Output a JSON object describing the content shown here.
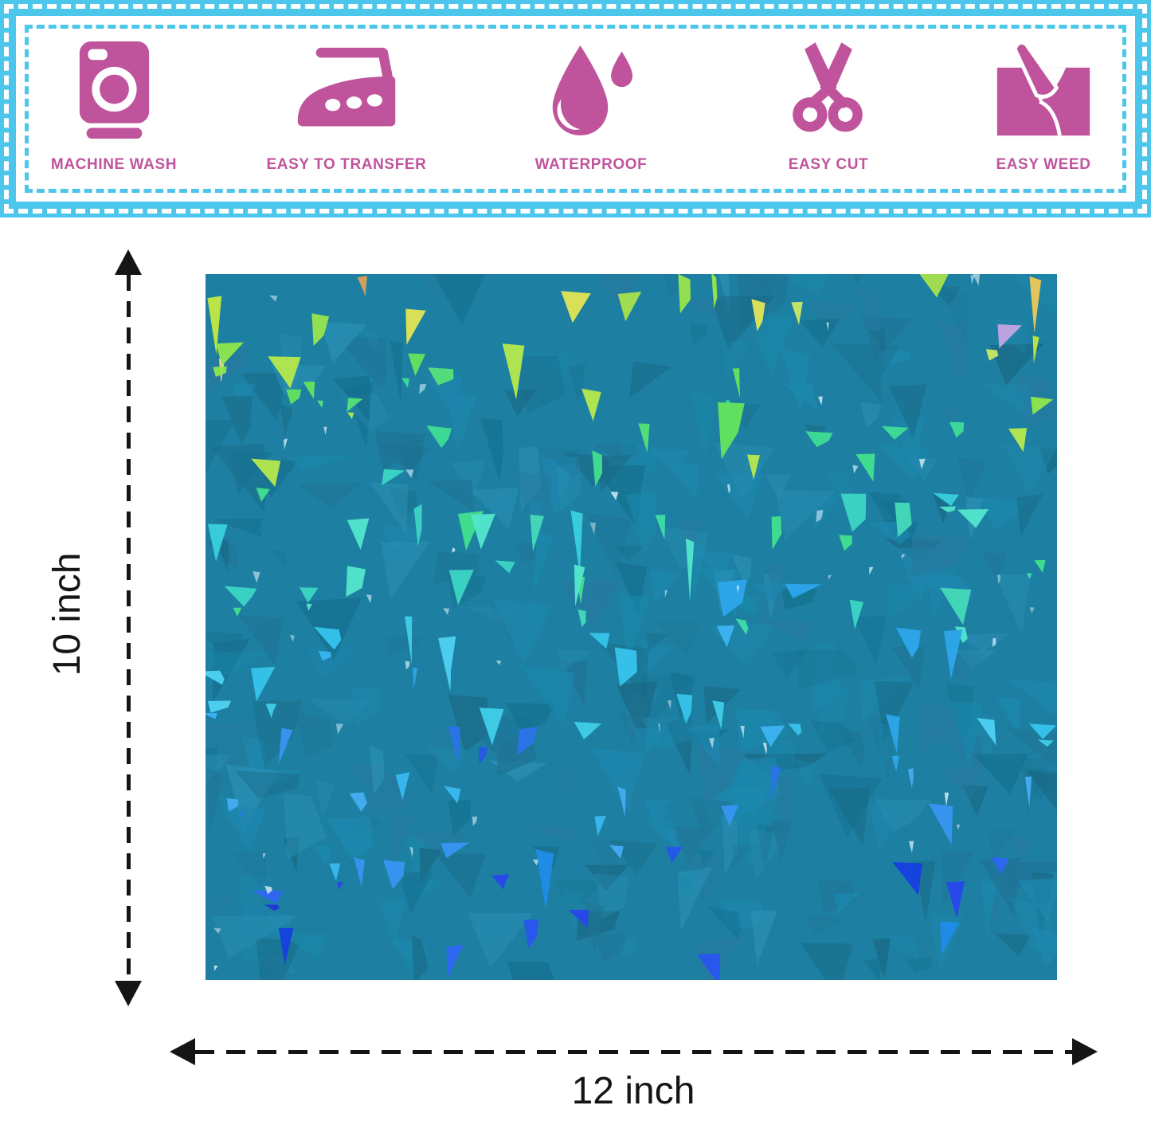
{
  "banner": {
    "border_color": "#4cc6eb",
    "accent_color": "#bf549d",
    "items": [
      {
        "icon": "washing-machine-icon",
        "label": "MACHINE WASH"
      },
      {
        "icon": "iron-icon",
        "label": "EASY TO TRANSFER"
      },
      {
        "icon": "water-drop-icon",
        "label": "WATERPROOF"
      },
      {
        "icon": "scissors-icon",
        "label": "EASY CUT"
      },
      {
        "icon": "peel-vinyl-icon",
        "label": "EASY WEED"
      }
    ]
  },
  "sheet": {
    "name": "blue holographic glitter vinyl sheet",
    "base_color": "#1d80a2",
    "tonal_palette": [
      "#15708f",
      "#1a89ad",
      "#27799f",
      "#1e88b0",
      "#196884",
      "#2b90b5",
      "#1f7496"
    ],
    "sparkle_palette": {
      "accent": [
        "#e89a66",
        "#e8a8c8",
        "#bfa6e2",
        "#f0d898",
        "#d8a05a"
      ],
      "top": [
        "#e0e455",
        "#bfe743",
        "#a4e04e",
        "#ecc757",
        "#c9e763",
        "#96e44e"
      ],
      "upper": [
        "#8fe64e",
        "#63e35e",
        "#41dd72",
        "#3edc96",
        "#b4e84e",
        "#55e07a"
      ],
      "middle": [
        "#3edda6",
        "#3cd4c4",
        "#38cfdd",
        "#52e5cc",
        "#41df8e",
        "#45d8b8"
      ],
      "lower_middle": [
        "#35c3ea",
        "#3cb3f2",
        "#4ed0f2",
        "#2da6ea",
        "#40cce8"
      ],
      "lower": [
        "#3795f2",
        "#2b74ea",
        "#45acf2",
        "#2556ea",
        "#38b8f0"
      ],
      "bottom": [
        "#2747ea",
        "#1e36d8",
        "#2f66f2",
        "#1e8ce8",
        "#163fe0",
        "#2a55ee"
      ]
    },
    "glint_color": "#dff2fb"
  },
  "dimensions": {
    "height_label": "10 inch",
    "width_label": "12 inch",
    "arrow_color": "#151515"
  }
}
